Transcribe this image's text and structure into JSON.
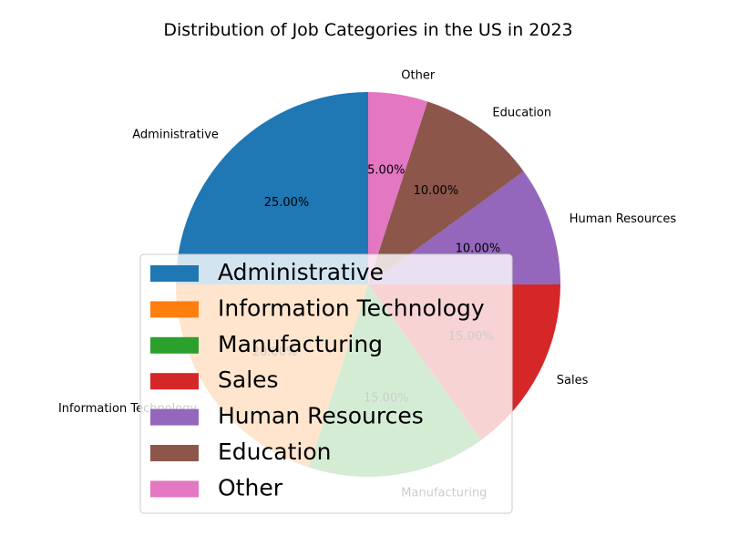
{
  "chart_data": {
    "type": "pie",
    "title": "Distribution of Job Categories in the US in 2023",
    "categories": [
      "Administrative",
      "Information Technology",
      "Manufacturing",
      "Sales",
      "Human Resources",
      "Education",
      "Other"
    ],
    "values": [
      25,
      20,
      15,
      15,
      10,
      10,
      5
    ],
    "value_labels": [
      "25.00%",
      "20.00%",
      "15.00%",
      "15.00%",
      "10.00%",
      "10.00%",
      "5.00%"
    ],
    "colors": [
      "#1f77b4",
      "#ff7f0e",
      "#2ca02c",
      "#d62728",
      "#9467bd",
      "#8c564b",
      "#e377c2"
    ],
    "legend": {
      "placement": "lower-center",
      "entries": [
        "Administrative",
        "Information Technology",
        "Manufacturing",
        "Sales",
        "Human Resources",
        "Education",
        "Other"
      ]
    }
  }
}
